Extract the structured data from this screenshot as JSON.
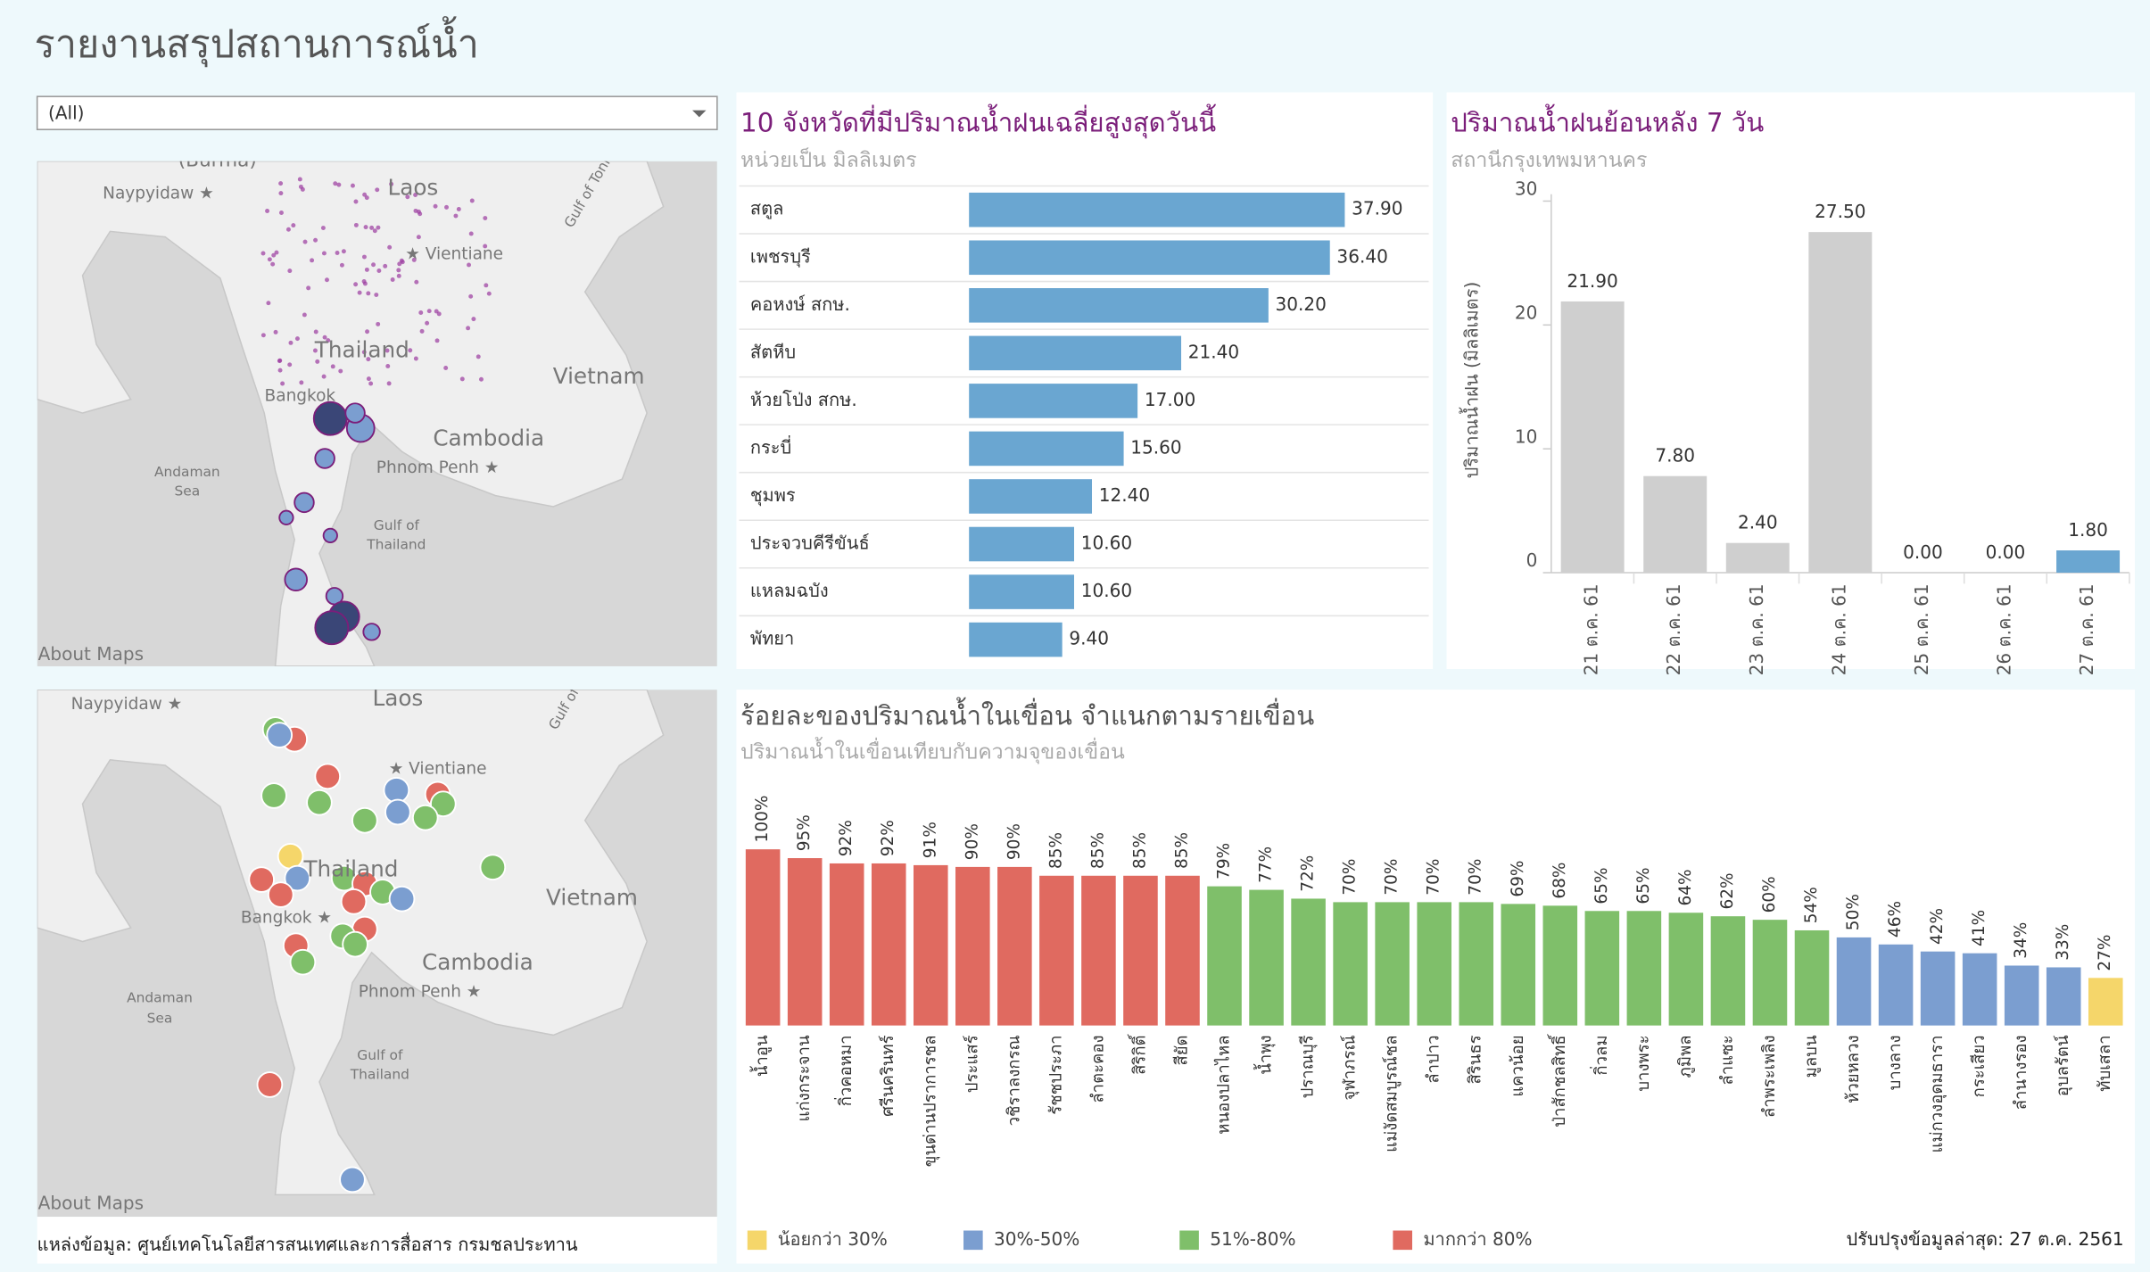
{
  "title": "รายงานสรุปสถานการณ์น้ำ",
  "filter": "(All)",
  "source": "แหล่งข้อมูล: ศูนย์เทคโนโลยีสารสนเทศและการสื่อสาร กรมชลประทาน",
  "updated": "ปรับปรุงข้อมูลล่าสุด: 27 ต.ค. 2561",
  "maps": [
    {
      "labels": [
        "(Burma)",
        "Naypyidaw ★",
        "Laos",
        "Gulf of Tonkin",
        "★ Vientiane",
        "Thailand",
        "Vietnam",
        "Bangkok",
        "Cambodia",
        "Phnom Penh ★",
        "Andaman",
        "Sea",
        "Gulf of",
        "Thailand",
        "About Maps"
      ]
    },
    {
      "labels": [
        "Naypyidaw ★",
        "Laos",
        "Gulf of",
        "★ Vientiane",
        "Thailand",
        "Vietnam",
        "Bangkok ★",
        "Cambodia",
        "Phnom Penh ★",
        "Andaman",
        "Sea",
        "Gulf of",
        "Thailand",
        "About Maps"
      ]
    }
  ],
  "chart_data": [
    {
      "type": "bar",
      "orientation": "horizontal",
      "title": "10 จังหวัดที่มีปริมาณน้ำฝนเฉลี่ยสูงสุดวันนี้",
      "subtitle": "หน่วยเป็น มิลลิเมตร",
      "categories": [
        "สตูล",
        "เพชรบุรี",
        "คอหงษ์ สกษ.",
        "สัตหีบ",
        "ห้วยโป่ง สกษ.",
        "กระบี่",
        "ชุมพร",
        "ประจวบคีรีขันธ์",
        "แหลมฉบัง",
        "พัทยา"
      ],
      "values": [
        37.9,
        36.4,
        30.2,
        21.4,
        17.0,
        15.6,
        12.4,
        10.6,
        10.6,
        9.4
      ],
      "value_labels": [
        "37.90",
        "36.40",
        "30.20",
        "21.40",
        "17.00",
        "15.60",
        "12.40",
        "10.60",
        "10.60",
        "9.40"
      ],
      "color": "#6aa6d1"
    },
    {
      "type": "bar",
      "orientation": "vertical",
      "title": "ปริมาณน้ำฝนย้อนหลัง 7 วัน",
      "subtitle": "สถานีกรุงเทพมหานคร",
      "y_label": "ปริมาณน้ำฝน (มิลลิเมตร)",
      "categories": [
        "21 ต.ค. 61",
        "22 ต.ค. 61",
        "23 ต.ค. 61",
        "24 ต.ค. 61",
        "25 ต.ค. 61",
        "26 ต.ค. 61",
        "27 ต.ค. 61"
      ],
      "values": [
        21.9,
        7.8,
        2.4,
        27.5,
        0,
        0,
        1.8
      ],
      "value_labels": [
        "21.90",
        "7.80",
        "2.40",
        "27.50",
        "0.00",
        "0.00",
        "1.80"
      ],
      "colors": [
        "#cfcfcf",
        "#cfcfcf",
        "#cfcfcf",
        "#cfcfcf",
        "#cfcfcf",
        "#cfcfcf",
        "#6aa6d1"
      ],
      "ylim": [
        0,
        30
      ],
      "yticks": [
        0,
        10,
        20,
        30
      ]
    },
    {
      "type": "bar",
      "orientation": "vertical",
      "title": "ร้อยละของปริมาณน้ำในเขื่อน จำแนกตามรายเขื่อน",
      "subtitle": "ปริมาณน้ำในเขื่อนเทียบกับความจุของเขื่อน",
      "categories": [
        "น้ำอูน",
        "แก่งกระจาน",
        "กิ่วคอหมา",
        "ศรีนครินทร์",
        "ขุนด่านปราการชล",
        "ประแสร์",
        "วชิราลงกรณ",
        "รัชชประภา",
        "ลำตะคอง",
        "สิริกิติ์",
        "สียัด",
        "หนองปลาไหล",
        "น้ำพุง",
        "ปราณบุรี",
        "จุฬาภรณ์",
        "แม่งัดสมบูรณ์ชล",
        "ลำปาว",
        "สิรินธร",
        "แควน้อย",
        "ป่าสักชลสิทธิ์",
        "กิ่วลม",
        "บางพระ",
        "ภูมิพล",
        "ลำแซะ",
        "ลำพระเพลิง",
        "มูลบน",
        "ห้วยหลวง",
        "บางลาง",
        "แม่กวงอุดมธารา",
        "กระเสียว",
        "ลำนางรอง",
        "อุบลรัตน์",
        "ทับเสลา"
      ],
      "values": [
        100,
        95,
        92,
        92,
        91,
        90,
        90,
        85,
        85,
        85,
        85,
        79,
        77,
        72,
        70,
        70,
        70,
        70,
        69,
        68,
        65,
        65,
        64,
        62,
        60,
        54,
        50,
        46,
        42,
        41,
        34,
        33,
        27
      ],
      "value_labels": [
        "100%",
        "95%",
        "92%",
        "92%",
        "91%",
        "90%",
        "90%",
        "85%",
        "85%",
        "85%",
        "85%",
        "79%",
        "77%",
        "72%",
        "70%",
        "70%",
        "70%",
        "70%",
        "69%",
        "68%",
        "65%",
        "65%",
        "64%",
        "62%",
        "60%",
        "54%",
        "50%",
        "46%",
        "42%",
        "41%",
        "34%",
        "33%",
        "27%"
      ],
      "colors": [
        "#e06a60",
        "#e06a60",
        "#e06a60",
        "#e06a60",
        "#e06a60",
        "#e06a60",
        "#e06a60",
        "#e06a60",
        "#e06a60",
        "#e06a60",
        "#e06a60",
        "#7fbf6a",
        "#7fbf6a",
        "#7fbf6a",
        "#7fbf6a",
        "#7fbf6a",
        "#7fbf6a",
        "#7fbf6a",
        "#7fbf6a",
        "#7fbf6a",
        "#7fbf6a",
        "#7fbf6a",
        "#7fbf6a",
        "#7fbf6a",
        "#7fbf6a",
        "#7fbf6a",
        "#7b9ed0",
        "#7b9ed0",
        "#7b9ed0",
        "#7b9ed0",
        "#7b9ed0",
        "#7b9ed0",
        "#f5d66a"
      ],
      "legend": [
        {
          "name": "น้อยกว่า 30%",
          "color": "#f5d66a"
        },
        {
          "name": "30%-50%",
          "color": "#7b9ed0"
        },
        {
          "name": "51%-80%",
          "color": "#7fbf6a"
        },
        {
          "name": "มากกว่า 80%",
          "color": "#e06a60"
        }
      ]
    }
  ]
}
